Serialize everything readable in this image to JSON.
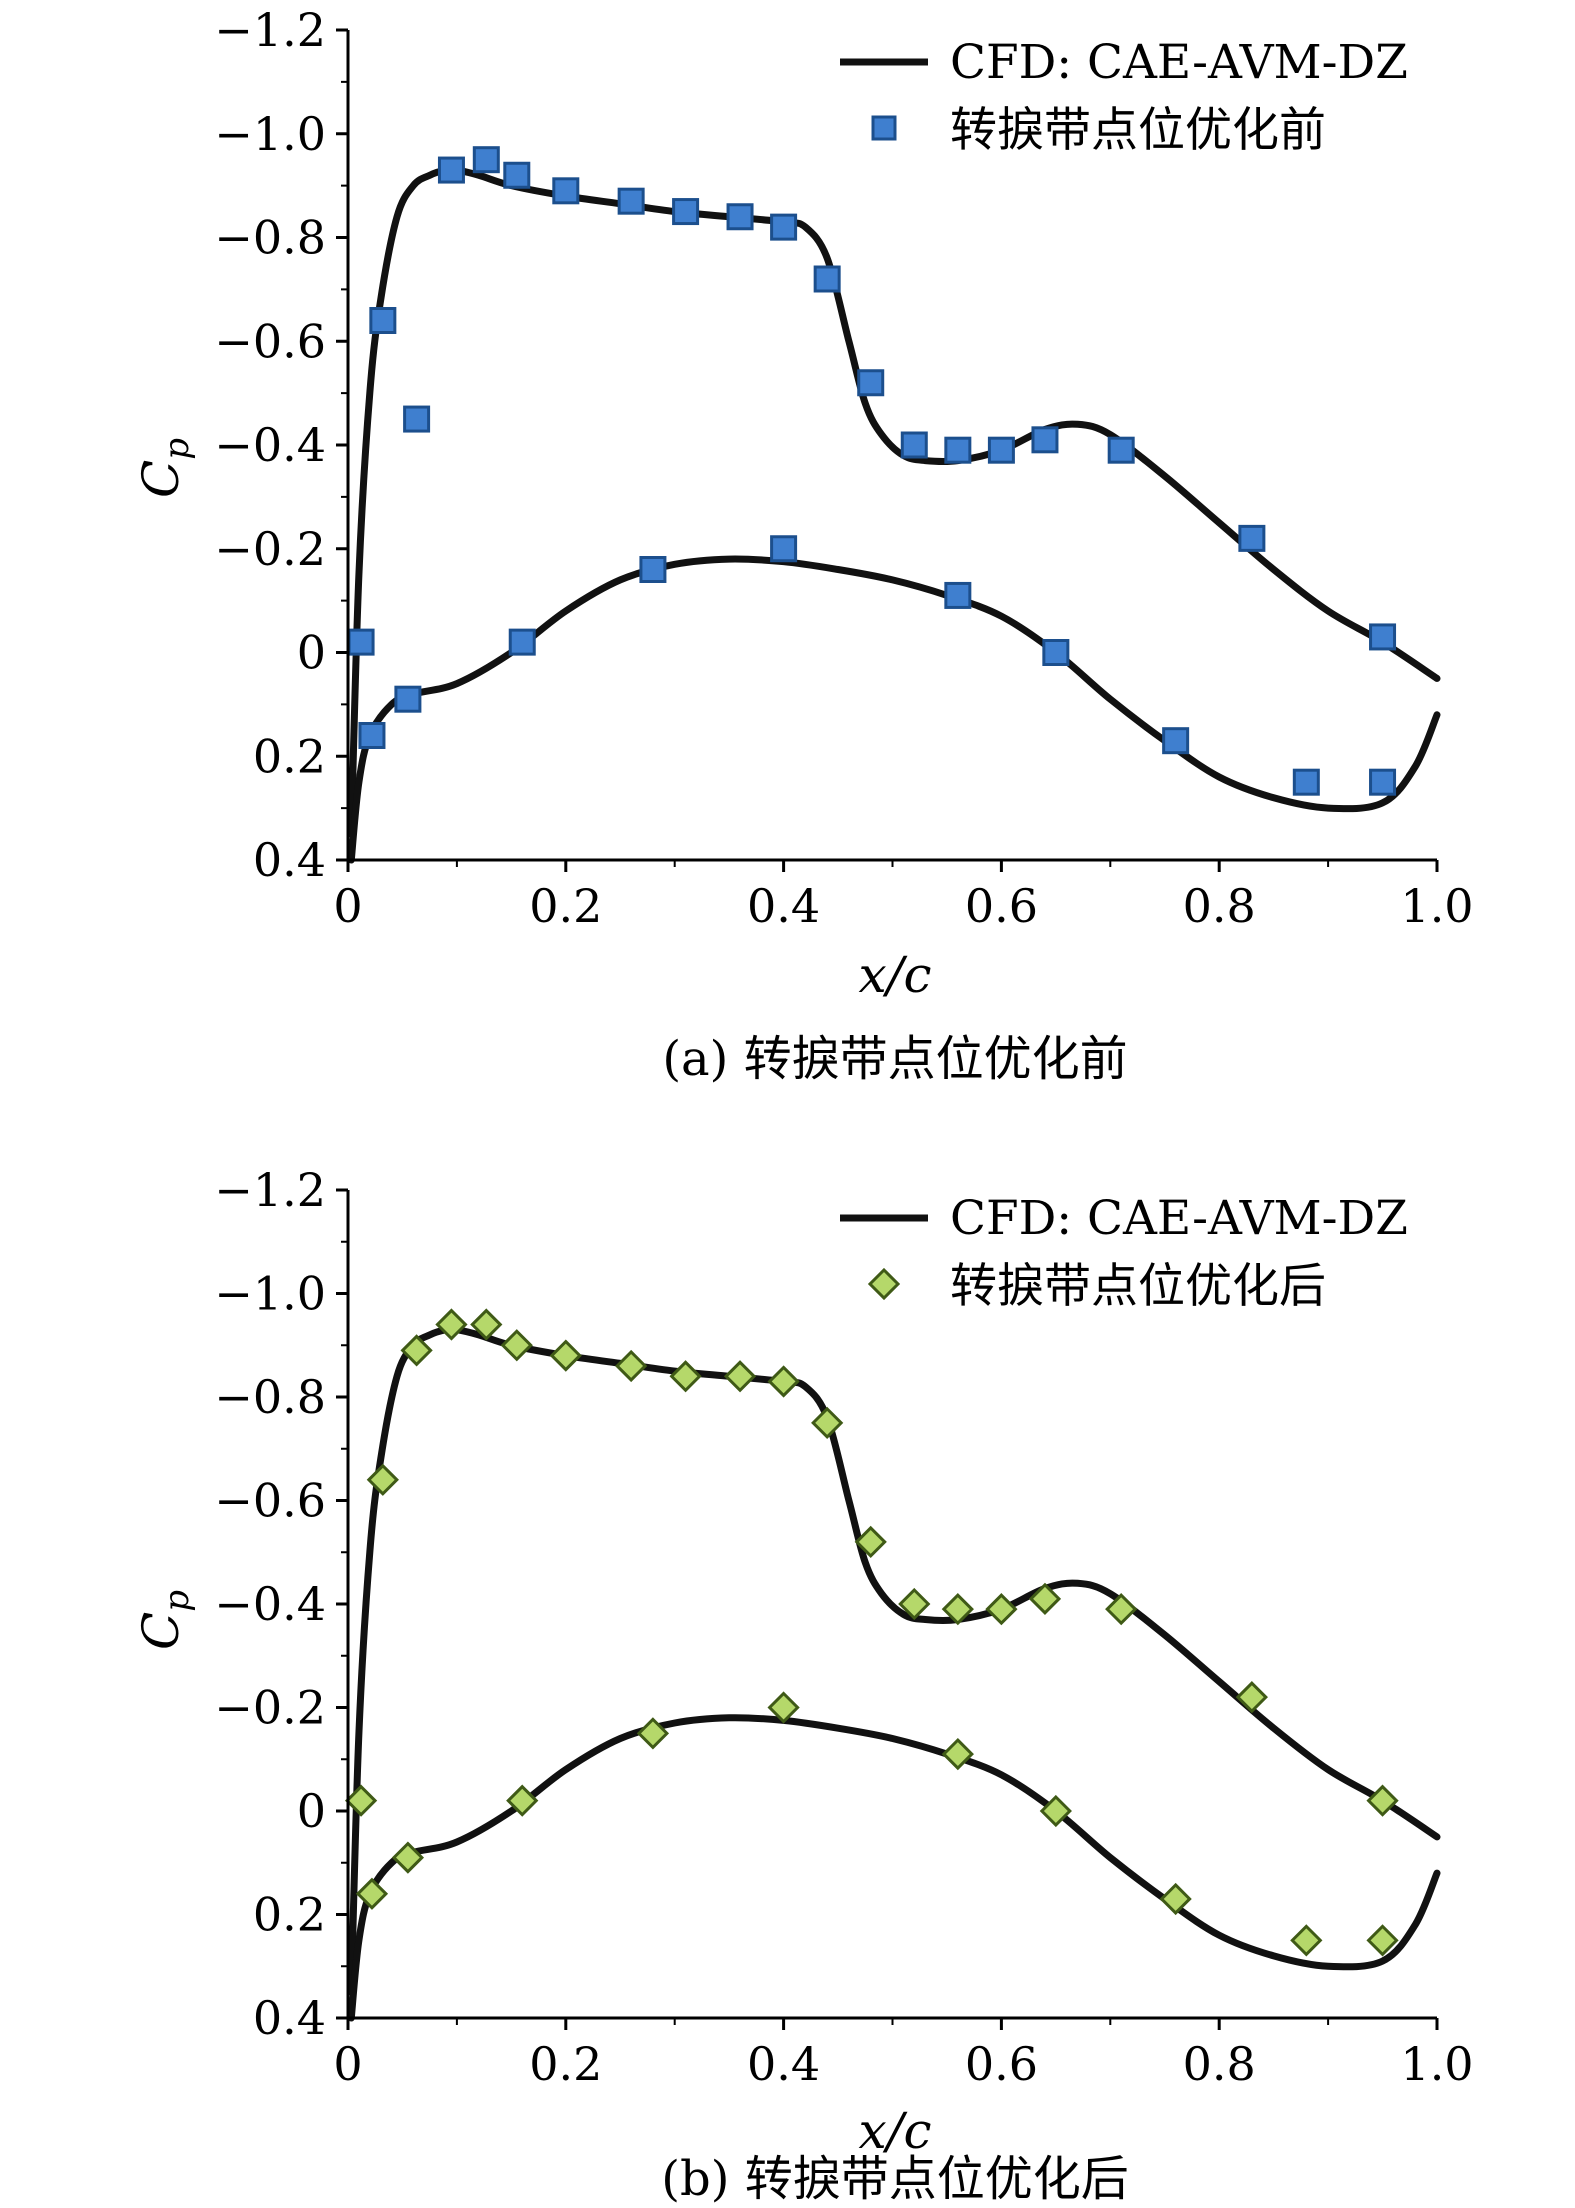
{
  "figures": [
    {
      "caption": "(a) 转捩带点位优化前",
      "legend": {
        "line_label": "CFD: CAE-AVM-DZ",
        "marker_label": "转捩带点位优化前"
      }
    },
    {
      "caption": "(b) 转捩带点位优化后",
      "legend": {
        "line_label": "CFD: CAE-AVM-DZ",
        "marker_label": "转捩带点位优化后"
      }
    }
  ],
  "chart_data": [
    {
      "type": "line",
      "title": "",
      "xlabel": "x/c",
      "ylabel": "C_p",
      "xlim": [
        0,
        1.0
      ],
      "ylim": [
        0.4,
        -1.2
      ],
      "y_inverted": true,
      "x_ticks": [
        "0",
        "0.2",
        "0.4",
        "0.6",
        "0.8",
        "1.0"
      ],
      "x_tick_values": [
        0,
        0.2,
        0.4,
        0.6,
        0.8,
        1.0
      ],
      "y_ticks": [
        "−1.2",
        "−1.0",
        "−0.8",
        "−0.6",
        "−0.4",
        "−0.2",
        "0",
        "0.2",
        "0.4"
      ],
      "y_tick_values": [
        -1.2,
        -1.0,
        -0.8,
        -0.6,
        -0.4,
        -0.2,
        0,
        0.2,
        0.4
      ],
      "legend_position": "top-right",
      "grid": false,
      "series": [
        {
          "name": "CFD: CAE-AVM-DZ",
          "kind": "line",
          "color": "#111111",
          "upper_x": [
            0.003,
            0.01,
            0.02,
            0.03,
            0.045,
            0.06,
            0.075,
            0.09,
            0.1,
            0.12,
            0.15,
            0.2,
            0.25,
            0.3,
            0.35,
            0.4,
            0.42,
            0.44,
            0.46,
            0.475,
            0.49,
            0.51,
            0.53,
            0.56,
            0.6,
            0.64,
            0.67,
            0.7,
            0.75,
            0.8,
            0.85,
            0.9,
            0.95,
            1.0
          ],
          "upper_y": [
            0.35,
            -0.15,
            -0.5,
            -0.68,
            -0.84,
            -0.9,
            -0.92,
            -0.93,
            -0.93,
            -0.92,
            -0.9,
            -0.88,
            -0.865,
            -0.85,
            -0.84,
            -0.83,
            -0.82,
            -0.76,
            -0.6,
            -0.48,
            -0.42,
            -0.38,
            -0.37,
            -0.37,
            -0.39,
            -0.43,
            -0.44,
            -0.42,
            -0.34,
            -0.25,
            -0.16,
            -0.08,
            -0.02,
            0.05
          ],
          "lower_x": [
            0.003,
            0.01,
            0.02,
            0.04,
            0.06,
            0.1,
            0.15,
            0.2,
            0.25,
            0.3,
            0.35,
            0.4,
            0.45,
            0.5,
            0.55,
            0.6,
            0.65,
            0.7,
            0.75,
            0.8,
            0.85,
            0.9,
            0.95,
            0.98,
            1.0
          ],
          "lower_y": [
            0.4,
            0.25,
            0.16,
            0.1,
            0.08,
            0.06,
            0.0,
            -0.08,
            -0.14,
            -0.17,
            -0.18,
            -0.175,
            -0.16,
            -0.14,
            -0.11,
            -0.07,
            0.0,
            0.09,
            0.17,
            0.24,
            0.28,
            0.3,
            0.29,
            0.22,
            0.12
          ]
        },
        {
          "name": "转捩带点位优化前",
          "kind": "scatter",
          "marker": "square",
          "color": "#3f7fcf",
          "x": [
            0.012,
            0.032,
            0.063,
            0.095,
            0.127,
            0.155,
            0.2,
            0.26,
            0.31,
            0.36,
            0.4,
            0.44,
            0.48,
            0.52,
            0.56,
            0.6,
            0.64,
            0.71,
            0.83,
            0.95,
            0.022,
            0.055,
            0.16,
            0.28,
            0.4,
            0.56,
            0.65,
            0.76,
            0.88,
            0.95
          ],
          "y": [
            -0.02,
            -0.64,
            -0.45,
            -0.93,
            -0.95,
            -0.92,
            -0.89,
            -0.87,
            -0.85,
            -0.84,
            -0.82,
            -0.72,
            -0.52,
            -0.4,
            -0.39,
            -0.39,
            -0.41,
            -0.39,
            -0.22,
            -0.03,
            0.16,
            0.09,
            -0.02,
            -0.16,
            -0.2,
            -0.11,
            0.0,
            0.17,
            0.25,
            0.25
          ]
        }
      ]
    },
    {
      "type": "line",
      "title": "",
      "xlabel": "x/c",
      "ylabel": "C_p",
      "xlim": [
        0,
        1.0
      ],
      "ylim": [
        0.4,
        -1.2
      ],
      "y_inverted": true,
      "x_ticks": [
        "0",
        "0.2",
        "0.4",
        "0.6",
        "0.8",
        "1.0"
      ],
      "x_tick_values": [
        0,
        0.2,
        0.4,
        0.6,
        0.8,
        1.0
      ],
      "y_ticks": [
        "−1.2",
        "−1.0",
        "−0.8",
        "−0.6",
        "−0.4",
        "−0.2",
        "0",
        "0.2",
        "0.4"
      ],
      "y_tick_values": [
        -1.2,
        -1.0,
        -0.8,
        -0.6,
        -0.4,
        -0.2,
        0,
        0.2,
        0.4
      ],
      "legend_position": "top-right",
      "grid": false,
      "series": [
        {
          "name": "CFD: CAE-AVM-DZ",
          "kind": "line",
          "color": "#111111",
          "upper_x": [
            0.003,
            0.01,
            0.02,
            0.03,
            0.045,
            0.06,
            0.075,
            0.09,
            0.1,
            0.12,
            0.15,
            0.2,
            0.25,
            0.3,
            0.35,
            0.4,
            0.42,
            0.44,
            0.46,
            0.475,
            0.49,
            0.51,
            0.53,
            0.56,
            0.6,
            0.64,
            0.67,
            0.7,
            0.75,
            0.8,
            0.85,
            0.9,
            0.95,
            1.0
          ],
          "upper_y": [
            0.35,
            -0.15,
            -0.5,
            -0.68,
            -0.84,
            -0.9,
            -0.92,
            -0.93,
            -0.93,
            -0.92,
            -0.9,
            -0.88,
            -0.865,
            -0.85,
            -0.84,
            -0.83,
            -0.82,
            -0.76,
            -0.6,
            -0.48,
            -0.42,
            -0.38,
            -0.37,
            -0.37,
            -0.39,
            -0.43,
            -0.44,
            -0.42,
            -0.34,
            -0.25,
            -0.16,
            -0.08,
            -0.02,
            0.05
          ],
          "lower_x": [
            0.003,
            0.01,
            0.02,
            0.04,
            0.06,
            0.1,
            0.15,
            0.2,
            0.25,
            0.3,
            0.35,
            0.4,
            0.45,
            0.5,
            0.55,
            0.6,
            0.65,
            0.7,
            0.75,
            0.8,
            0.85,
            0.9,
            0.95,
            0.98,
            1.0
          ],
          "lower_y": [
            0.4,
            0.25,
            0.16,
            0.1,
            0.08,
            0.06,
            0.0,
            -0.08,
            -0.14,
            -0.17,
            -0.18,
            -0.175,
            -0.16,
            -0.14,
            -0.11,
            -0.07,
            0.0,
            0.09,
            0.17,
            0.24,
            0.28,
            0.3,
            0.29,
            0.22,
            0.12
          ]
        },
        {
          "name": "转捩带点位优化后",
          "kind": "scatter",
          "marker": "diamond",
          "color": "#b5d86a",
          "x": [
            0.012,
            0.032,
            0.063,
            0.095,
            0.127,
            0.155,
            0.2,
            0.26,
            0.31,
            0.36,
            0.4,
            0.44,
            0.48,
            0.52,
            0.56,
            0.6,
            0.64,
            0.71,
            0.83,
            0.95,
            0.022,
            0.055,
            0.16,
            0.28,
            0.4,
            0.56,
            0.65,
            0.76,
            0.88,
            0.95
          ],
          "y": [
            -0.02,
            -0.64,
            -0.89,
            -0.94,
            -0.94,
            -0.9,
            -0.88,
            -0.86,
            -0.84,
            -0.84,
            -0.83,
            -0.75,
            -0.52,
            -0.4,
            -0.39,
            -0.39,
            -0.41,
            -0.39,
            -0.22,
            -0.02,
            0.16,
            0.09,
            -0.02,
            -0.15,
            -0.2,
            -0.11,
            0.0,
            0.17,
            0.25,
            0.25
          ]
        }
      ]
    }
  ]
}
